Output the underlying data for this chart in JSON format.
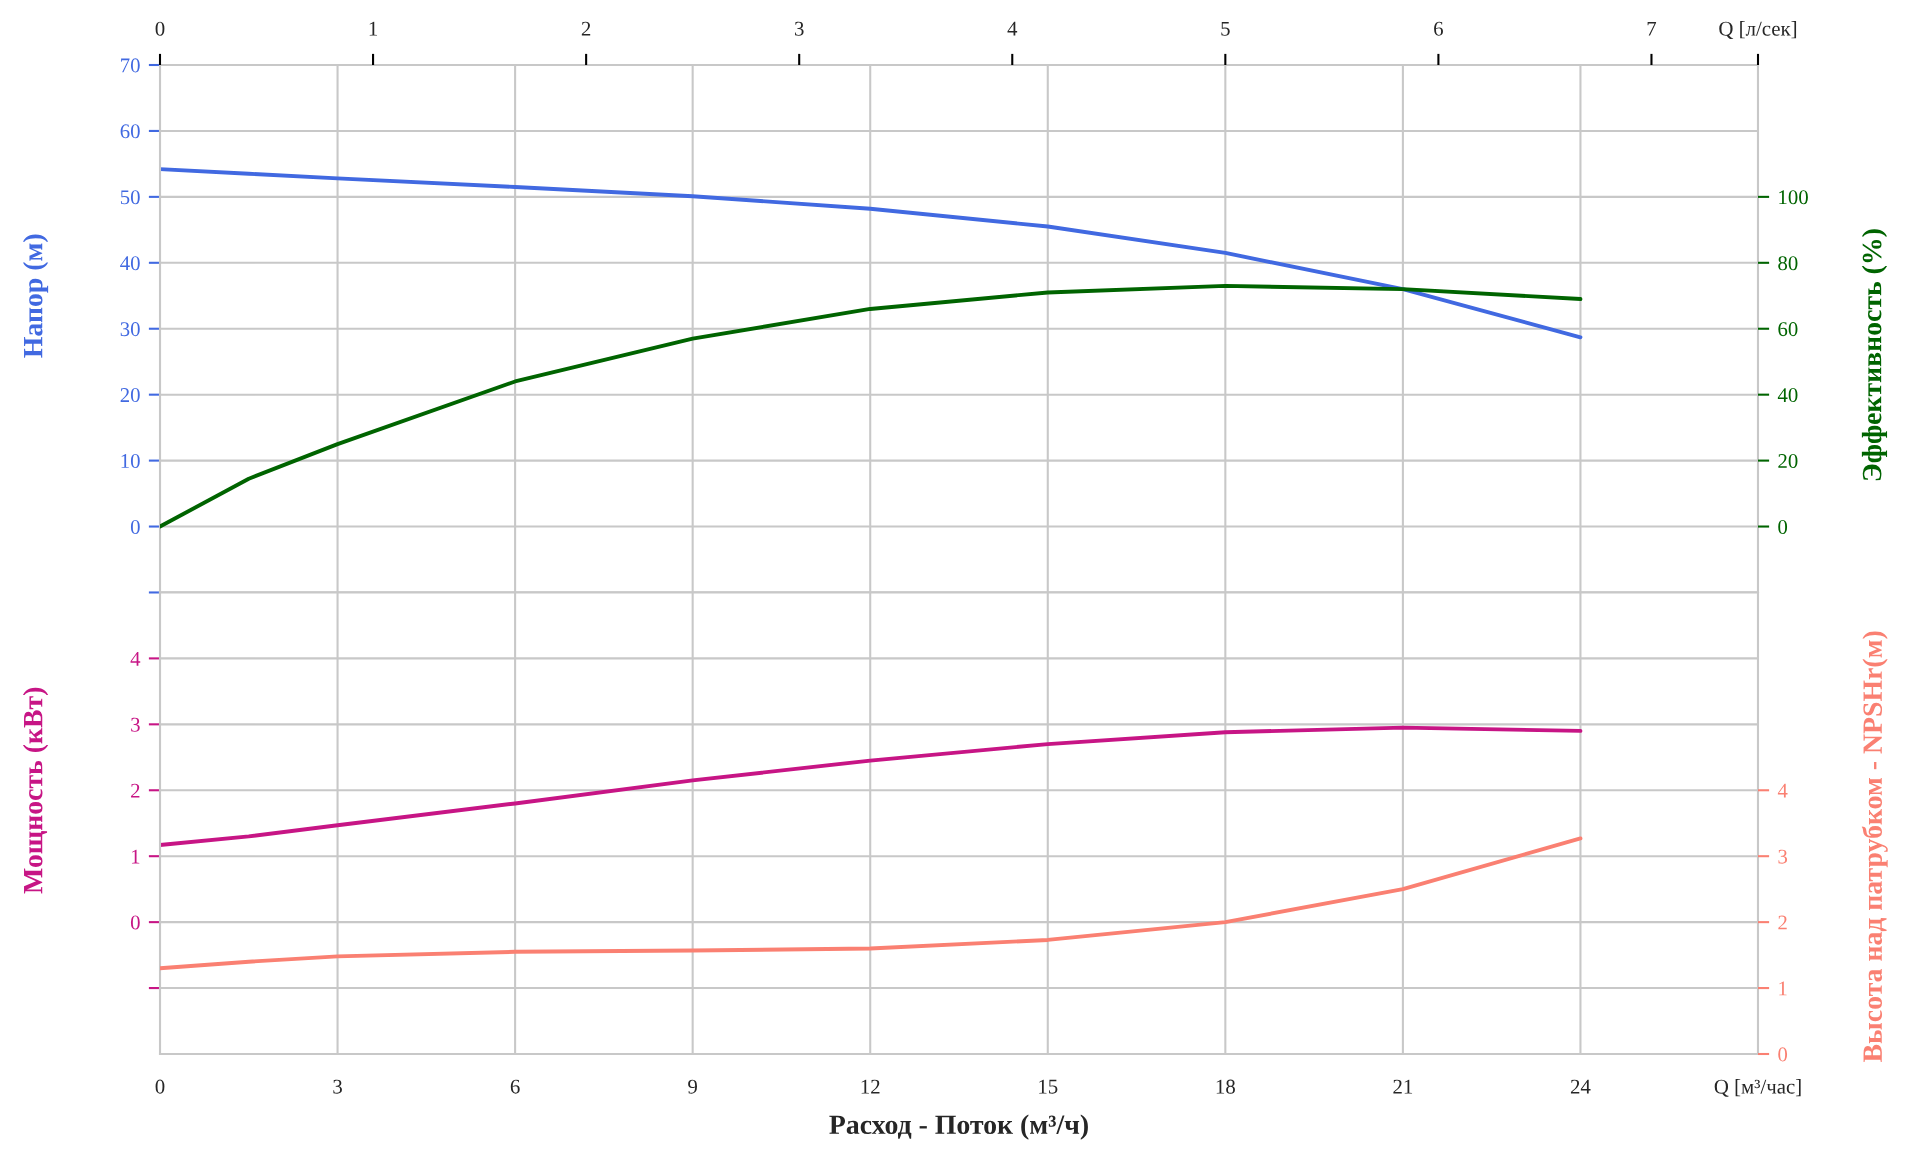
{
  "chart_data": [
    {
      "type": "line",
      "x": [
        0,
        1.5,
        3,
        6,
        9,
        12,
        15,
        18,
        21,
        24
      ],
      "xlim": [
        0,
        27
      ],
      "xticks": [
        0,
        3,
        6,
        9,
        12,
        15,
        18,
        21,
        24,
        27
      ],
      "x2lim": [
        0,
        7.5
      ],
      "x2ticks": [
        0,
        1,
        2,
        3,
        4,
        5,
        6,
        7,
        {
          "value": 7.5,
          "label": "Q [л/сек]"
        }
      ],
      "tick_labels": "y",
      "ylabel": "Напор (м)",
      "ylim": [
        -10,
        70
      ],
      "yticks": [
        {
          "value": -10,
          "label": null
        },
        0,
        10,
        20,
        30,
        40,
        50,
        60,
        70
      ],
      "y2label": "Эффективность (%)",
      "y2lim": [
        -20,
        140
      ],
      "y2ticks": [
        0,
        20,
        40,
        60,
        80,
        100
      ],
      "grid": true,
      "series": [
        {
          "color": "#4169e1",
          "values": [
            54.2,
            53.5,
            52.8,
            51.5,
            50.1,
            48.2,
            45.5,
            41.5,
            36,
            28.7
          ]
        },
        {
          "axis": "y2",
          "color": "#006400",
          "values": [
            0,
            14.5,
            25,
            44,
            57,
            66,
            71,
            73,
            72,
            69
          ]
        }
      ]
    },
    {
      "type": "line",
      "xlabel": "Расход - Поток (м³/ч)",
      "x": [
        0,
        1.5,
        3,
        6,
        9,
        12,
        15,
        18,
        21,
        24
      ],
      "xlim": [
        0,
        27
      ],
      "xticks": [
        0,
        3,
        6,
        9,
        12,
        15,
        18,
        21,
        24,
        {
          "value": 27,
          "label": "Q [м³/час]"
        }
      ],
      "ylabel": "Мощность (кВт)",
      "ylim": [
        -2,
        5
      ],
      "yticks": [
        {
          "value": -1,
          "label": null
        },
        0,
        1,
        2,
        3,
        4
      ],
      "y2label": "Высота над патрубком - NPSHr(м)",
      "y2lim": [
        0,
        7
      ],
      "y2ticks": [
        0,
        1,
        2,
        3,
        4
      ],
      "grid": true,
      "series": [
        {
          "color": "#c71585",
          "values": [
            1.17,
            1.3,
            1.47,
            1.8,
            2.15,
            2.45,
            2.7,
            2.88,
            2.95,
            2.9
          ]
        },
        {
          "axis": "y2",
          "color": "#fa8072",
          "values": [
            1.3,
            1.4,
            1.48,
            1.55,
            1.57,
            1.6,
            1.73,
            2.0,
            2.5,
            3.27
          ]
        }
      ]
    }
  ]
}
